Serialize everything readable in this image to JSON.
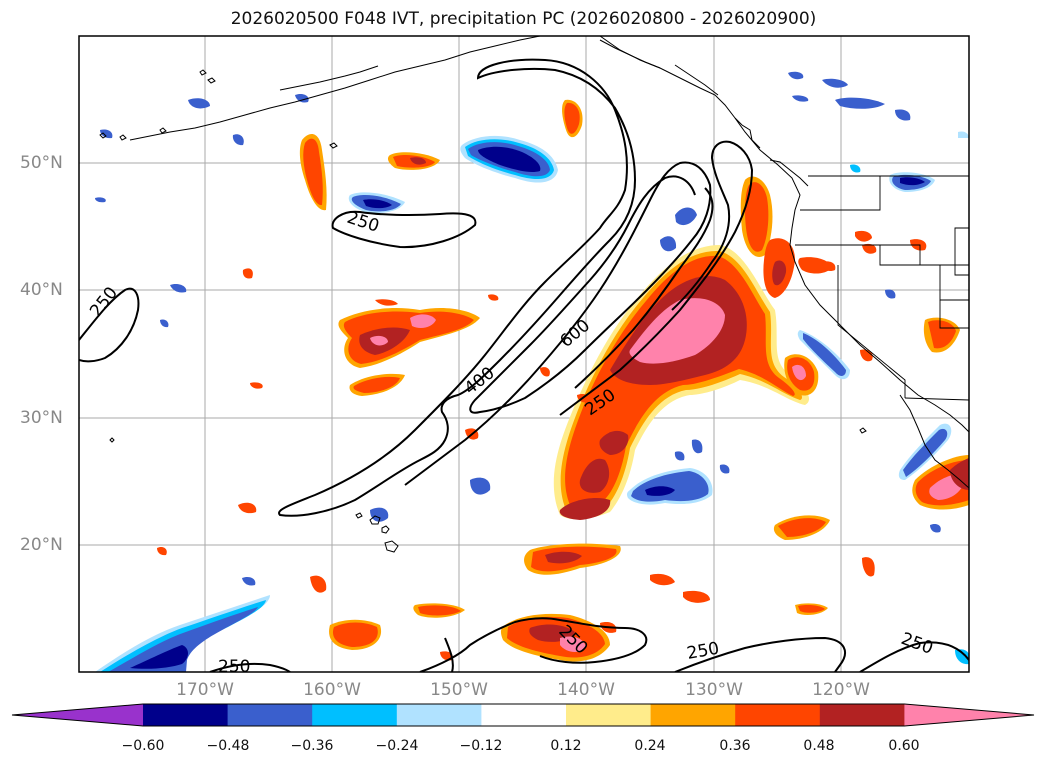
{
  "title": "2026020500 F048 IVT, precipitation PC (2026020800 - 2026020900)",
  "longitude_ticks": [
    "170°W",
    "160°W",
    "150°W",
    "140°W",
    "130°W",
    "120°W"
  ],
  "latitude_ticks": [
    "50°N",
    "40°N",
    "30°N",
    "20°N"
  ],
  "contour_labels": [
    {
      "text": "250",
      "loc": "west-edge"
    },
    {
      "text": "250",
      "loc": "north-pacific"
    },
    {
      "text": "400",
      "loc": "plume"
    },
    {
      "text": "600",
      "loc": "plume-core"
    },
    {
      "text": "250",
      "loc": "plume-east"
    },
    {
      "text": "250",
      "loc": "south-1"
    },
    {
      "text": "250",
      "loc": "south-2"
    },
    {
      "text": "250",
      "loc": "south-3"
    },
    {
      "text": "250",
      "loc": "south-east"
    }
  ],
  "colorbar": {
    "tick_labels": [
      "−0.60",
      "−0.48",
      "−0.36",
      "−0.24",
      "−0.12",
      "0.12",
      "0.24",
      "0.36",
      "0.48",
      "0.60"
    ],
    "colors": [
      "#9932cc",
      "#00008b",
      "#3a5fcd",
      "#00bfff",
      "#b0e2ff",
      "#ffffff",
      "#ffec8b",
      "#ffa500",
      "#ff4500",
      "#b22222",
      "#ff82ab"
    ]
  }
}
